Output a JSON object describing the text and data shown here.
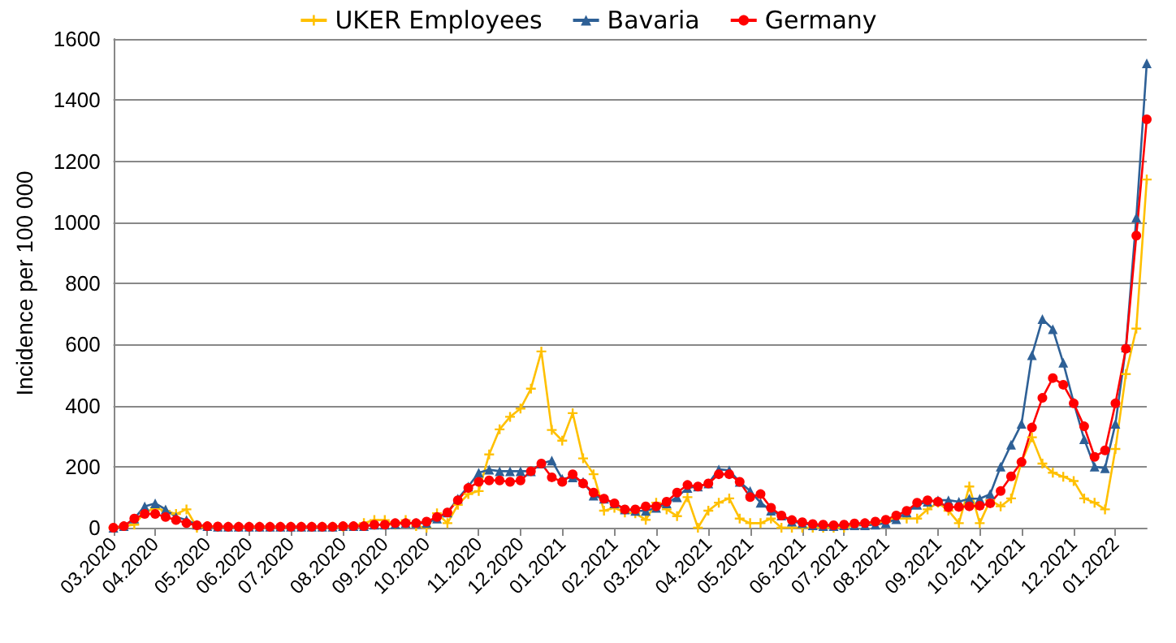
{
  "chart_data": {
    "type": "line",
    "ylabel": "Incidence per 100 000",
    "categories": [
      "03.2020",
      null,
      null,
      null,
      "04.2020",
      null,
      null,
      null,
      null,
      "05.2020",
      null,
      null,
      null,
      "06.2020",
      null,
      null,
      null,
      "07.2020",
      null,
      null,
      null,
      null,
      "08.2020",
      null,
      null,
      null,
      "09.2020",
      null,
      null,
      null,
      "10.2020",
      null,
      null,
      null,
      null,
      "11.2020",
      null,
      null,
      null,
      "12.2020",
      null,
      null,
      null,
      "01.2021",
      null,
      null,
      null,
      null,
      "02.2021",
      null,
      null,
      null,
      "03.2021",
      null,
      null,
      null,
      null,
      "04.2021",
      null,
      null,
      null,
      "05.2021",
      null,
      null,
      null,
      null,
      "06.2021",
      null,
      null,
      null,
      "07.2021",
      null,
      null,
      null,
      "08.2021",
      null,
      null,
      null,
      null,
      "09.2021",
      null,
      null,
      null,
      "10.2021",
      null,
      null,
      null,
      "11.2021",
      null,
      null,
      null,
      null,
      "12.2021",
      null,
      null,
      null,
      "01.2022",
      null,
      null,
      null
    ],
    "series": [
      {
        "name": "UKER Employees",
        "color": "#ffc000",
        "marker": "cross",
        "values": [
          0,
          5,
          10,
          50,
          65,
          55,
          45,
          60,
          0,
          5,
          3,
          3,
          3,
          3,
          3,
          3,
          3,
          3,
          3,
          3,
          3,
          3,
          3,
          5,
          15,
          25,
          25,
          10,
          25,
          5,
          0,
          47,
          15,
          75,
          110,
          120,
          240,
          322,
          363,
          390,
          455,
          577,
          320,
          285,
          375,
          227,
          175,
          56,
          65,
          50,
          47,
          26,
          82,
          60,
          38,
          100,
          0,
          56,
          82,
          96,
          30,
          15,
          15,
          30,
          0,
          0,
          0,
          0,
          0,
          0,
          0,
          8,
          12,
          15,
          20,
          30,
          30,
          30,
          60,
          82,
          56,
          15,
          135,
          15,
          90,
          70,
          96,
          215,
          296,
          210,
          180,
          167,
          153,
          96,
          82,
          60,
          258,
          503,
          652,
          1140
        ]
      },
      {
        "name": "Bavaria",
        "color": "#2e6096",
        "marker": "triangle",
        "values": [
          0,
          5,
          30,
          70,
          80,
          60,
          35,
          25,
          10,
          5,
          3,
          3,
          3,
          3,
          3,
          3,
          3,
          3,
          3,
          3,
          3,
          3,
          5,
          5,
          5,
          10,
          10,
          12,
          15,
          15,
          15,
          30,
          50,
          95,
          135,
          180,
          190,
          185,
          185,
          185,
          185,
          210,
          220,
          160,
          165,
          150,
          105,
          95,
          80,
          60,
          55,
          55,
          65,
          80,
          100,
          130,
          135,
          145,
          191,
          188,
          150,
          120,
          82,
          56,
          40,
          20,
          15,
          8,
          5,
          5,
          8,
          8,
          8,
          10,
          15,
          28,
          50,
          75,
          85,
          90,
          90,
          85,
          95,
          95,
          110,
          200,
          272,
          340,
          565,
          683,
          650,
          540,
          410,
          290,
          200,
          195,
          340,
          590,
          1015,
          1520
        ]
      },
      {
        "name": "Germany",
        "color": "#ff0000",
        "marker": "circle",
        "values": [
          0,
          5,
          30,
          45,
          45,
          35,
          25,
          15,
          8,
          5,
          4,
          3,
          3,
          3,
          3,
          3,
          3,
          3,
          3,
          3,
          3,
          3,
          5,
          5,
          5,
          10,
          10,
          15,
          15,
          15,
          20,
          35,
          50,
          90,
          130,
          150,
          155,
          155,
          150,
          155,
          185,
          210,
          165,
          150,
          175,
          145,
          115,
          95,
          80,
          60,
          60,
          70,
          70,
          85,
          115,
          140,
          135,
          145,
          175,
          175,
          150,
          100,
          110,
          65,
          40,
          25,
          18,
          12,
          10,
          8,
          10,
          14,
          15,
          20,
          26,
          40,
          55,
          82,
          90,
          85,
          67,
          68,
          70,
          72,
          80,
          120,
          168,
          215,
          328,
          425,
          490,
          468,
          407,
          332,
          232,
          253,
          407,
          586,
          956,
          1337
        ]
      }
    ],
    "ylim": [
      0,
      1600
    ],
    "yticks": [
      0,
      200,
      400,
      600,
      800,
      1000,
      1200,
      1400,
      1600
    ],
    "grid": "y",
    "legend": "top"
  }
}
